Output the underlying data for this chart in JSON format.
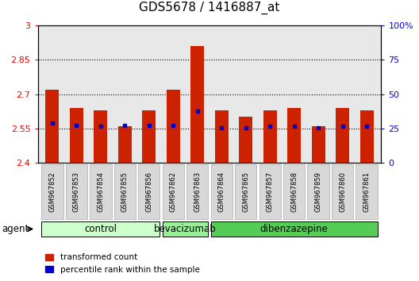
{
  "title": "GDS5678 / 1416887_at",
  "samples": [
    "GSM967852",
    "GSM967853",
    "GSM967854",
    "GSM967855",
    "GSM967856",
    "GSM967862",
    "GSM967863",
    "GSM967864",
    "GSM967865",
    "GSM967857",
    "GSM967858",
    "GSM967859",
    "GSM967860",
    "GSM967861"
  ],
  "red_values": [
    2.72,
    2.64,
    2.63,
    2.56,
    2.63,
    2.72,
    2.91,
    2.63,
    2.6,
    2.63,
    2.64,
    2.56,
    2.64,
    2.63
  ],
  "blue_values": [
    2.575,
    2.565,
    2.56,
    2.565,
    2.565,
    2.565,
    2.625,
    2.555,
    2.555,
    2.56,
    2.56,
    2.555,
    2.56,
    2.56
  ],
  "ylim_left": [
    2.4,
    3.0
  ],
  "ylim_right": [
    0,
    100
  ],
  "yticks_left": [
    2.4,
    2.55,
    2.7,
    2.85,
    3.0
  ],
  "ytick_labels_left": [
    "2.4",
    "2.55",
    "2.7",
    "2.85",
    "3"
  ],
  "yticks_right": [
    0,
    25,
    50,
    75,
    100
  ],
  "ytick_labels_right": [
    "0",
    "25",
    "50",
    "75",
    "100%"
  ],
  "groups": [
    {
      "label": "control",
      "start": 0,
      "end": 5,
      "color": "#ccffcc"
    },
    {
      "label": "bevacizumab",
      "start": 5,
      "end": 7,
      "color": "#99ee99"
    },
    {
      "label": "dibenzazepine",
      "start": 7,
      "end": 14,
      "color": "#55cc55"
    }
  ],
  "bar_color": "#cc2200",
  "dot_color": "#0000cc",
  "bar_width": 0.55,
  "bar_bottom": 2.4,
  "agent_label": "agent",
  "legend_red_label": "transformed count",
  "legend_blue_label": "percentile rank within the sample",
  "plot_bg_color": "#e8e8e8",
  "title_fontsize": 11,
  "tick_fontsize": 8,
  "sample_fontsize": 6,
  "group_fontsize": 8.5,
  "legend_fontsize": 7.5
}
